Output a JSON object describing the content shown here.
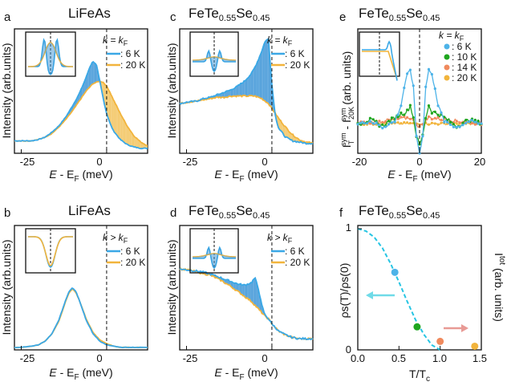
{
  "colors": {
    "blue": "#3aa8e6",
    "orange": "#f2b43c",
    "fill_blue": "#3a93d6",
    "fill_orange": "#f2c25a",
    "cyan": "#27c5e3",
    "green": "#1fa61f",
    "salmon": "#f08a5d",
    "pink": "#e89a95"
  },
  "chart_data": [
    {
      "id": "a",
      "panel_label": "a",
      "title": "LiFeAs",
      "type": "line",
      "xlabel": "E - E_F (meV)",
      "ylabel": "Intensity (arb.units)",
      "xlim": [
        -27,
        12
      ],
      "ylim": [
        0,
        1
      ],
      "xticks": [
        "-25",
        "0"
      ],
      "legend": {
        "header": "k = k_F",
        "entries": [
          ": 6 K",
          ": 20 K"
        ]
      },
      "series": [
        {
          "name": "6 K",
          "x": [
            -27,
            -25,
            -22,
            -20,
            -18,
            -16,
            -14,
            -12,
            -10,
            -8,
            -6,
            -5,
            -4,
            -3,
            -2,
            -1,
            0,
            1,
            2,
            4,
            6,
            8,
            10,
            12
          ],
          "y": [
            0.1,
            0.1,
            0.1,
            0.11,
            0.13,
            0.17,
            0.22,
            0.29,
            0.38,
            0.48,
            0.61,
            0.69,
            0.74,
            0.71,
            0.58,
            0.44,
            0.32,
            0.24,
            0.18,
            0.11,
            0.07,
            0.05,
            0.04,
            0.04
          ]
        },
        {
          "name": "20 K",
          "x": [
            -27,
            -25,
            -22,
            -20,
            -18,
            -16,
            -14,
            -12,
            -10,
            -8,
            -6,
            -5,
            -4,
            -3,
            -2,
            -1,
            0,
            1,
            2,
            4,
            6,
            8,
            10,
            12
          ],
          "y": [
            0.1,
            0.1,
            0.1,
            0.11,
            0.13,
            0.16,
            0.21,
            0.27,
            0.34,
            0.42,
            0.5,
            0.53,
            0.56,
            0.57,
            0.58,
            0.57,
            0.54,
            0.49,
            0.43,
            0.32,
            0.22,
            0.14,
            0.09,
            0.06
          ]
        }
      ]
    },
    {
      "id": "c",
      "panel_label": "c",
      "title": "FeTe0.55Se0.45",
      "type": "line",
      "xlabel": "E - E_F (meV)",
      "ylabel": "Intensity (arb.units)",
      "xlim": [
        -27,
        12
      ],
      "ylim": [
        0,
        1
      ],
      "xticks": [
        "-25",
        "0"
      ],
      "legend": {
        "header": "k = k_F",
        "entries": [
          ": 6 K",
          ": 20 K"
        ]
      },
      "series": [
        {
          "name": "6 K",
          "x": [
            -27,
            -25,
            -22,
            -20,
            -18,
            -16,
            -14,
            -12,
            -10,
            -8,
            -6,
            -5,
            -4,
            -3,
            -2,
            -1,
            0,
            1,
            2,
            4,
            6,
            8,
            10,
            12
          ],
          "y": [
            0.4,
            0.41,
            0.42,
            0.44,
            0.45,
            0.47,
            0.49,
            0.51,
            0.54,
            0.58,
            0.64,
            0.69,
            0.75,
            0.82,
            0.9,
            0.92,
            0.55,
            0.3,
            0.2,
            0.13,
            0.1,
            0.09,
            0.08,
            0.08
          ]
        },
        {
          "name": "20 K",
          "x": [
            -27,
            -25,
            -22,
            -20,
            -18,
            -16,
            -14,
            -12,
            -10,
            -8,
            -6,
            -5,
            -4,
            -3,
            -2,
            -1,
            0,
            1,
            2,
            4,
            6,
            8,
            10,
            12
          ],
          "y": [
            0.4,
            0.41,
            0.42,
            0.43,
            0.44,
            0.45,
            0.45,
            0.46,
            0.46,
            0.46,
            0.46,
            0.46,
            0.45,
            0.44,
            0.42,
            0.4,
            0.36,
            0.32,
            0.28,
            0.21,
            0.15,
            0.11,
            0.09,
            0.08
          ]
        }
      ]
    },
    {
      "id": "e",
      "panel_label": "e",
      "title": "FeTe0.55Se0.45",
      "type": "line",
      "xlabel": "E - E_F (meV)",
      "ylabel": "I_T^sym - I_20K^sym (arb. units)",
      "xlim": [
        -20,
        20
      ],
      "xticks": [
        "-20",
        "0",
        "20"
      ],
      "legend": {
        "header": "k = k_F",
        "entries": [
          ": 6 K",
          ": 10 K",
          ": 14 K",
          ": 20 K"
        ]
      },
      "series": [
        {
          "name": "6 K",
          "x": [
            -20,
            -16,
            -12,
            -8,
            -6,
            -5,
            -4,
            -3,
            -2,
            -1,
            0,
            1,
            2,
            3,
            4,
            5,
            6,
            8,
            12,
            16,
            20
          ],
          "y": [
            0.0,
            0.02,
            -0.03,
            0.02,
            0.15,
            0.3,
            0.4,
            0.45,
            0.3,
            -0.1,
            -0.25,
            -0.1,
            0.3,
            0.45,
            0.4,
            0.3,
            0.15,
            0.02,
            -0.03,
            0.02,
            0.0
          ]
        },
        {
          "name": "10 K",
          "x": [
            -20,
            -16,
            -12,
            -8,
            -6,
            -4,
            -3,
            -2,
            -1,
            0,
            1,
            2,
            3,
            4,
            6,
            8,
            12,
            16,
            20
          ],
          "y": [
            0.0,
            0.03,
            -0.02,
            0.05,
            0.08,
            0.1,
            0.15,
            0.05,
            -0.1,
            -0.18,
            -0.1,
            0.05,
            0.15,
            0.1,
            0.08,
            0.05,
            -0.02,
            0.03,
            0.0
          ]
        },
        {
          "name": "14 K",
          "x": [
            -20,
            -12,
            -6,
            -3,
            0,
            3,
            6,
            12,
            20
          ],
          "y": [
            0.0,
            0.02,
            0.04,
            0.05,
            -0.03,
            0.05,
            0.04,
            0.02,
            0.0
          ]
        },
        {
          "name": "20 K",
          "x": [
            -20,
            -10,
            0,
            10,
            20
          ],
          "y": [
            0.0,
            0.0,
            0.0,
            0.0,
            0.0
          ]
        }
      ]
    },
    {
      "id": "b",
      "panel_label": "b",
      "title": "LiFeAs",
      "type": "line",
      "xlabel": "E - E_F (meV)",
      "ylabel": "Intensity (arb.units)",
      "xlim": [
        -27,
        12
      ],
      "ylim": [
        0,
        1
      ],
      "xticks": [
        "-25",
        "0"
      ],
      "legend": {
        "header": "k > k_F",
        "entries": [
          ": 6 K",
          ": 20 K"
        ]
      },
      "series": [
        {
          "name": "6 K",
          "x": [
            -27,
            -25,
            -22,
            -20,
            -18,
            -16,
            -14,
            -12,
            -11,
            -10,
            -9,
            -8,
            -6,
            -4,
            -2,
            0,
            2,
            4,
            6,
            8,
            10,
            12
          ],
          "y": [
            0.02,
            0.02,
            0.03,
            0.04,
            0.07,
            0.13,
            0.24,
            0.4,
            0.47,
            0.5,
            0.47,
            0.4,
            0.24,
            0.13,
            0.07,
            0.04,
            0.03,
            0.02,
            0.02,
            0.02,
            0.02,
            0.02
          ]
        },
        {
          "name": "20 K",
          "x": [
            -27,
            -25,
            -22,
            -20,
            -18,
            -16,
            -14,
            -12,
            -11,
            -10,
            -9,
            -8,
            -6,
            -4,
            -2,
            0,
            2,
            4,
            6,
            8,
            10,
            12
          ],
          "y": [
            0.02,
            0.02,
            0.03,
            0.04,
            0.07,
            0.13,
            0.23,
            0.39,
            0.46,
            0.49,
            0.46,
            0.4,
            0.25,
            0.14,
            0.08,
            0.05,
            0.03,
            0.02,
            0.02,
            0.02,
            0.02,
            0.02
          ]
        }
      ]
    },
    {
      "id": "d",
      "panel_label": "d",
      "title": "FeTe0.55Se0.45",
      "type": "line",
      "xlabel": "E - E_F (meV)",
      "ylabel": "Intensity (arb.units)",
      "xlim": [
        -27,
        12
      ],
      "ylim": [
        0,
        1
      ],
      "xticks": [
        "-25",
        "0"
      ],
      "legend": {
        "header": "k > k_F",
        "entries": [
          ": 6 K",
          ": 20 K"
        ]
      },
      "series": [
        {
          "name": "6 K",
          "x": [
            -27,
            -24,
            -21,
            -18,
            -15,
            -12,
            -10,
            -8,
            -6,
            -5,
            -4,
            -3,
            -2,
            -1,
            0,
            1,
            2,
            4,
            6,
            8,
            10,
            12
          ],
          "y": [
            0.65,
            0.64,
            0.63,
            0.61,
            0.58,
            0.55,
            0.53,
            0.52,
            0.54,
            0.58,
            0.5,
            0.36,
            0.28,
            0.25,
            0.21,
            0.18,
            0.15,
            0.12,
            0.1,
            0.09,
            0.09,
            0.09
          ]
        },
        {
          "name": "20 K",
          "x": [
            -27,
            -24,
            -21,
            -18,
            -15,
            -12,
            -10,
            -8,
            -6,
            -5,
            -4,
            -3,
            -2,
            -1,
            0,
            1,
            2,
            4,
            6,
            8,
            10,
            12
          ],
          "y": [
            0.65,
            0.64,
            0.62,
            0.6,
            0.56,
            0.51,
            0.47,
            0.43,
            0.39,
            0.36,
            0.33,
            0.3,
            0.27,
            0.25,
            0.21,
            0.18,
            0.15,
            0.12,
            0.1,
            0.09,
            0.09,
            0.09
          ]
        }
      ]
    },
    {
      "id": "f",
      "panel_label": "f",
      "title": "FeTe0.55Se0.45",
      "type": "scatter",
      "xlabel": "T/T_c",
      "ylabel": "ρ_s(T)/ρ_s(0)",
      "ylabel_right": "I^tot (arb. units)",
      "xlim": [
        0,
        1.5
      ],
      "ylim": [
        0,
        1
      ],
      "xticks": [
        "0.0",
        "0.5",
        "1.0",
        "1.5"
      ],
      "yticks": [
        "0",
        "1"
      ],
      "curve": {
        "name": "dashed superfluid density",
        "x": [
          0,
          0.1,
          0.2,
          0.3,
          0.4,
          0.5,
          0.6,
          0.7,
          0.8,
          0.9,
          1.0
        ],
        "y": [
          1.0,
          0.98,
          0.93,
          0.84,
          0.71,
          0.56,
          0.4,
          0.25,
          0.13,
          0.04,
          0.0
        ]
      },
      "points": [
        {
          "T": "6 K",
          "x": 0.45,
          "y": 0.64
        },
        {
          "T": "10 K",
          "x": 0.72,
          "y": 0.19
        },
        {
          "T": "14 K",
          "x": 1.0,
          "y": 0.07
        },
        {
          "T": "20 K",
          "x": 1.42,
          "y": 0.03
        }
      ]
    }
  ],
  "labels": {
    "a": "a",
    "b": "b",
    "c": "c",
    "d": "d",
    "e": "e",
    "f": "f",
    "title_lifeas": "LiFeAs",
    "title_fete": "FeTe",
    "title_sub1": "0.55",
    "title_se": "Se",
    "title_sub2": "0.45",
    "ylabel_int": "Intensity (arb.units)",
    "ylabel_f": "ρs(T)/ρs(0)",
    "ylabel_f_right": "I",
    "ylabel_f_right_sup": "tot",
    "ylabel_f_right_tail": " (arb. units)",
    "xlabel_E": "E",
    "xlabel_mid": " - E",
    "xlabel_F": "F",
    "xlabel_unit": " (meV)",
    "xlabel_T": "T/T",
    "xlabel_Tc": "c",
    "k_eq": "k = k",
    "k_gt": "k > k",
    "k_F": "F",
    "leg_6K": ": 6 K",
    "leg_10K": ": 10 K",
    "leg_14K": ": 14 K",
    "leg_20K": ": 20 K",
    "e_ylabel_I": "I",
    "e_sup1": "sym",
    "e_sub1": "T",
    "e_mid": " - I",
    "e_sup2": "sym",
    "e_sub2": "20K",
    "e_tail": " (arb. units)",
    "tick_m25": "-25",
    "tick_0": "0",
    "tick_m20": "-20",
    "tick_20": "20",
    "tick_f0": "0.0",
    "tick_f05": "0.5",
    "tick_f10": "1.0",
    "tick_f15": "1.5",
    "tick_y0": "0",
    "tick_y1": "1"
  }
}
